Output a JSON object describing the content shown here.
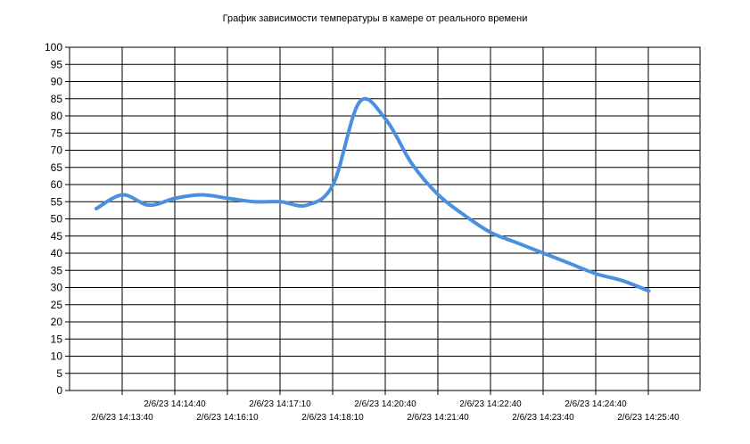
{
  "chart_data": {
    "type": "line",
    "title": "График зависимости температуры в камере от реального времени",
    "xlabel": "",
    "ylabel": "",
    "ylim": [
      0,
      100
    ],
    "y_ticks": [
      0,
      5,
      10,
      15,
      20,
      25,
      30,
      35,
      40,
      45,
      50,
      55,
      60,
      65,
      70,
      75,
      80,
      85,
      90,
      95,
      100
    ],
    "x_ticks": [
      {
        "label": "2/6/23 14:13:40",
        "row": 2
      },
      {
        "label": "2/6/23 14:14:40",
        "row": 1
      },
      {
        "label": "2/6/23 14:16:10",
        "row": 2
      },
      {
        "label": "2/6/23 14:17:10",
        "row": 1
      },
      {
        "label": "2/6/23 14:18:10",
        "row": 2
      },
      {
        "label": "2/6/23 14:20:40",
        "row": 1
      },
      {
        "label": "2/6/23 14:21:40",
        "row": 2
      },
      {
        "label": "2/6/23 14:22:40",
        "row": 1
      },
      {
        "label": "2/6/23 14:23:40",
        "row": 2
      },
      {
        "label": "2/6/23 14:24:40",
        "row": 1
      },
      {
        "label": "2/6/23 14:25:40",
        "row": 2
      }
    ],
    "grid": true,
    "line_color": "#4a8fe0",
    "series": [
      {
        "x": [
          0,
          0.5,
          1,
          1.5,
          2,
          2.5,
          3,
          3.5,
          4,
          4.5,
          5,
          5.5,
          6,
          6.5,
          7,
          7.5,
          8,
          8.5,
          9,
          9.5,
          10,
          10.5
        ],
        "y": [
          53,
          57,
          54,
          56,
          57,
          56,
          55,
          55,
          54,
          60,
          84,
          79,
          66,
          57,
          51,
          46,
          43,
          40,
          37,
          34,
          32,
          29
        ]
      }
    ]
  }
}
